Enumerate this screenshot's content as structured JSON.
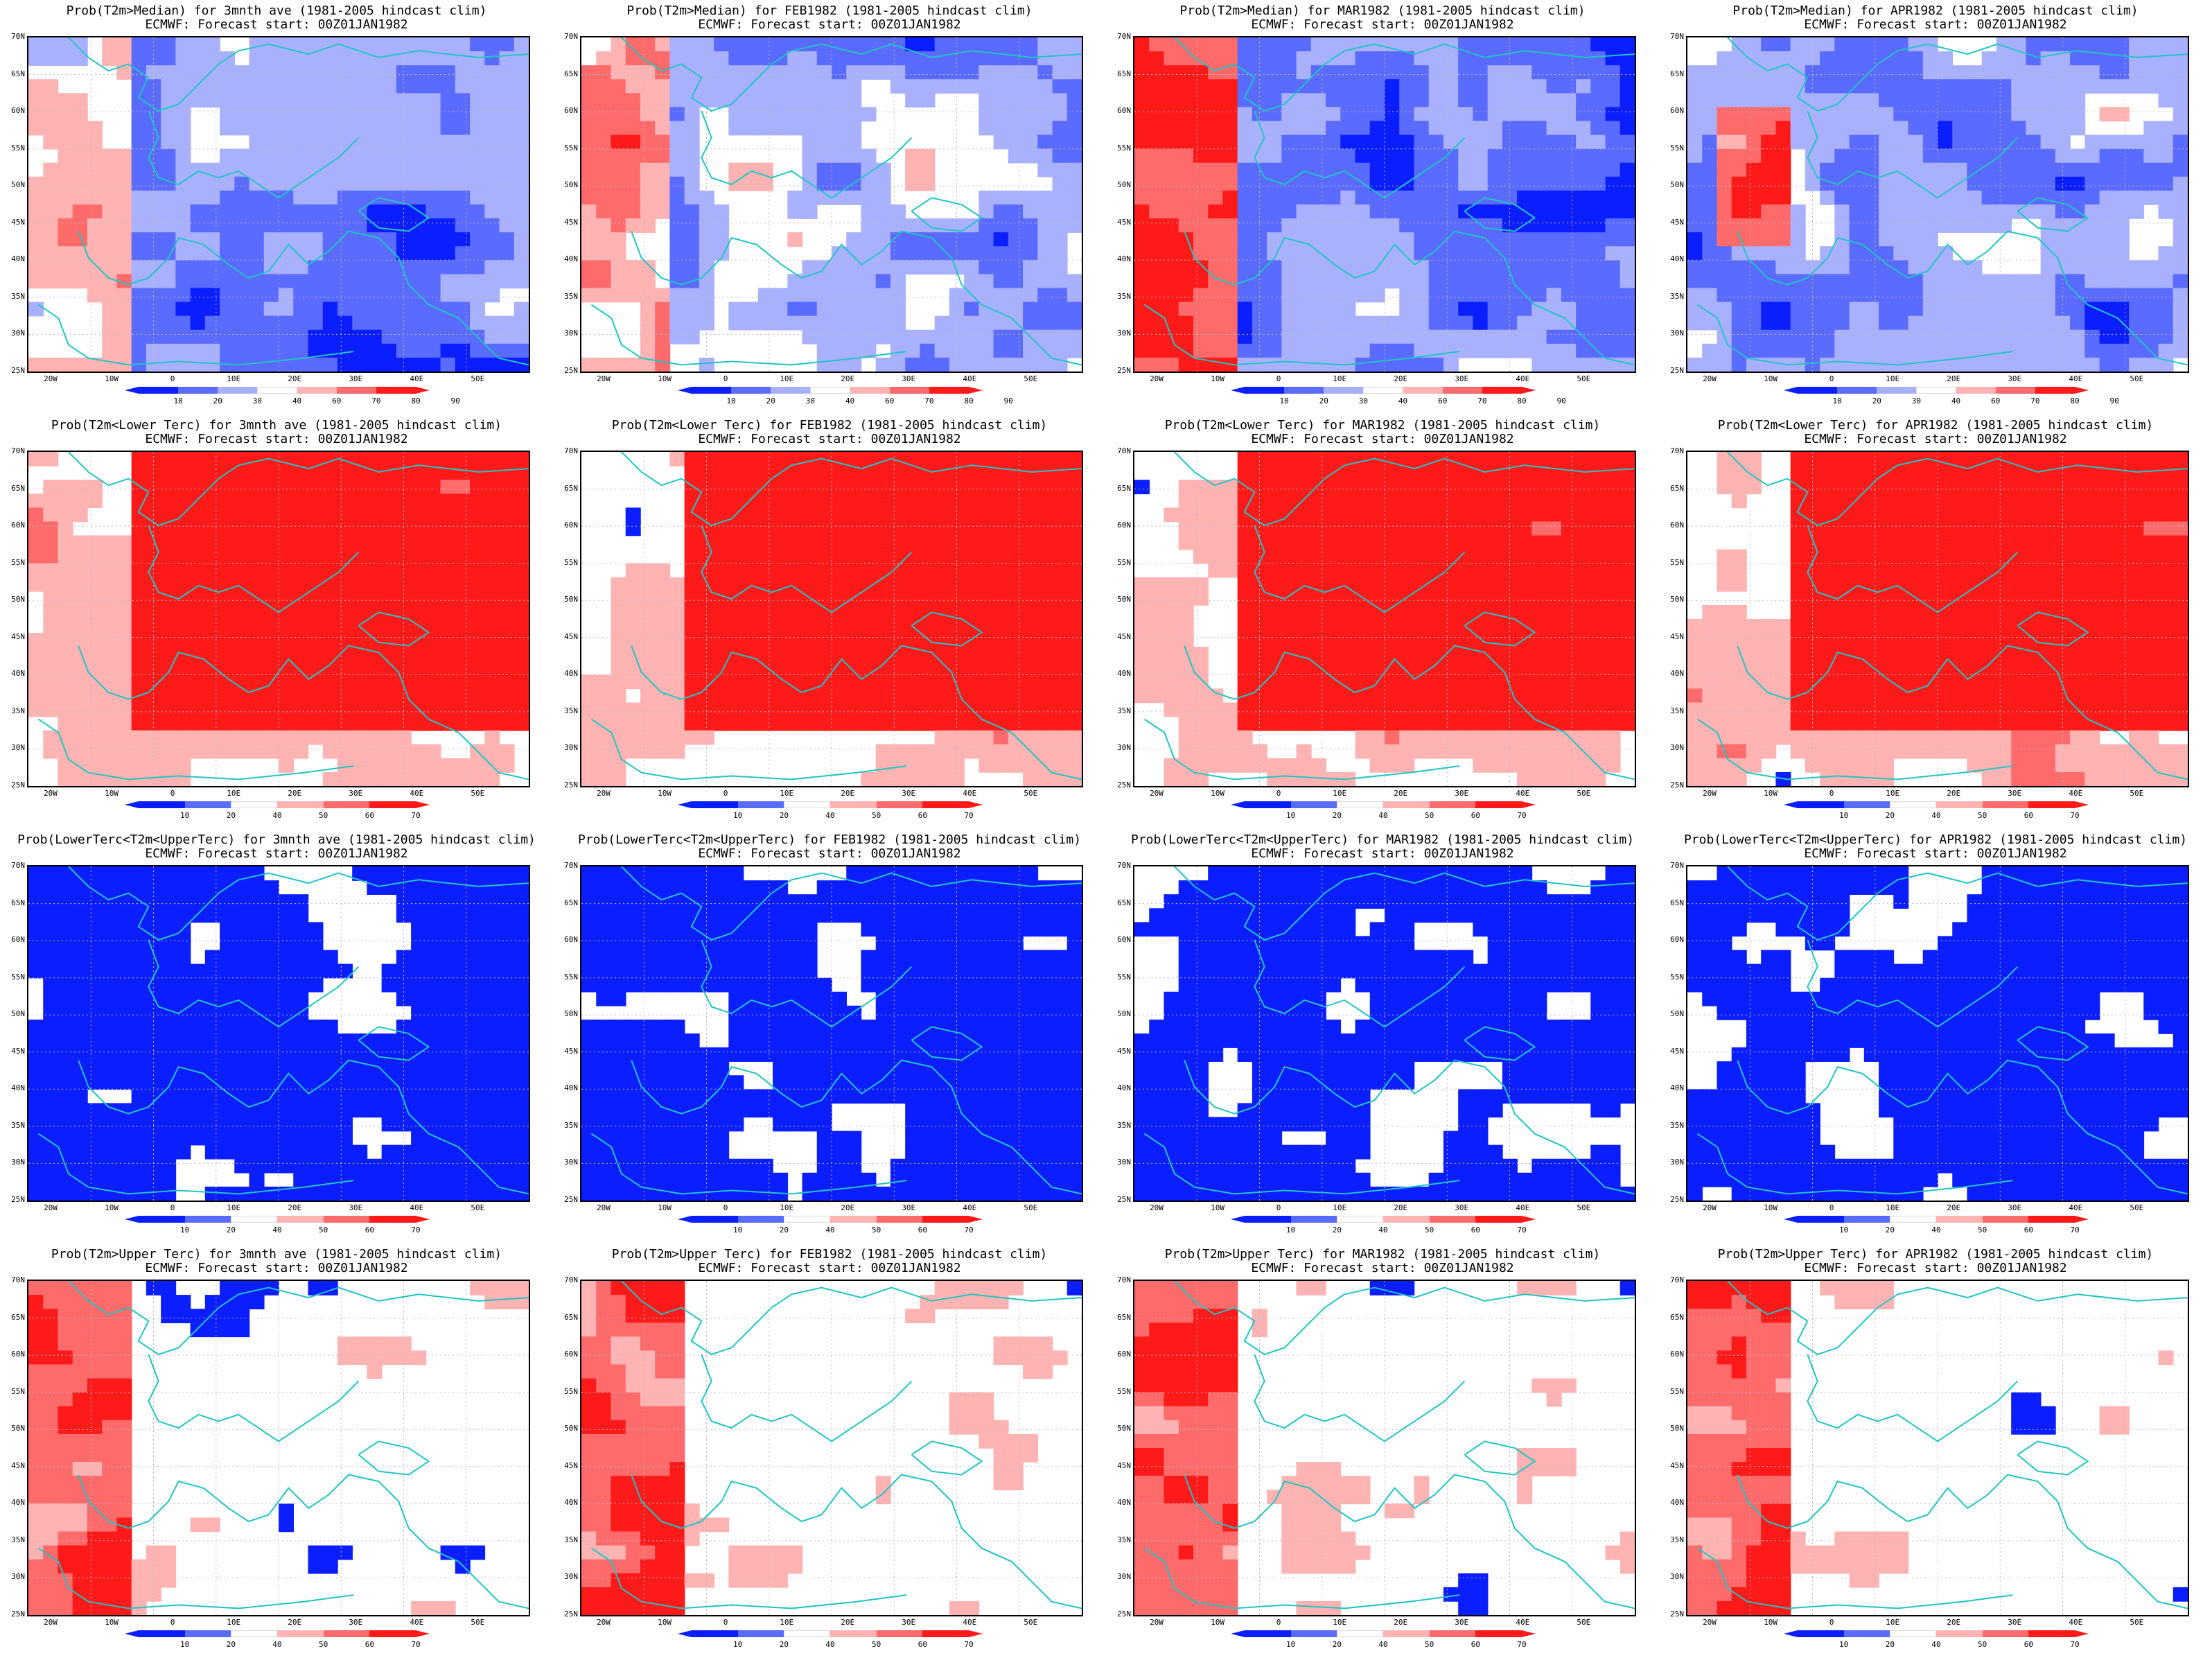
{
  "colors": {
    "blue_dark": "#0a1eff",
    "blue_mid": "#5a6bff",
    "blue_light": "#a9b1ff",
    "white": "#ffffff",
    "red_light": "#ffb3b3",
    "red_mid": "#ff6b6b",
    "red_dark": "#ff1a1a",
    "coast": "#20c4c4"
  },
  "lat_labels": [
    "70N",
    "65N",
    "60N",
    "55N",
    "50N",
    "45N",
    "40N",
    "35N",
    "30N",
    "25N"
  ],
  "lon_labels": [
    "20W",
    "10W",
    "0",
    "10E",
    "20E",
    "30E",
    "40E",
    "50E"
  ],
  "colorbars": {
    "median": [
      "10",
      "20",
      "30",
      "40",
      "60",
      "70",
      "80",
      "90"
    ],
    "tercile": [
      "10",
      "20",
      "40",
      "50",
      "60",
      "70"
    ]
  },
  "panels": [
    {
      "title1": "Prob(T2m>Median) for 3mnth ave (1981-2005 hindcast clim)",
      "title2": "ECMWF: Forecast start: 00Z01JAN1982",
      "kind": "median",
      "pattern": "median_ave"
    },
    {
      "title1": "Prob(T2m>Median) for FEB1982 (1981-2005 hindcast clim)",
      "title2": "ECMWF: Forecast start: 00Z01JAN1982",
      "kind": "median",
      "pattern": "median_feb"
    },
    {
      "title1": "Prob(T2m>Median) for MAR1982 (1981-2005 hindcast clim)",
      "title2": "ECMWF: Forecast start: 00Z01JAN1982",
      "kind": "median",
      "pattern": "median_mar"
    },
    {
      "title1": "Prob(T2m>Median) for APR1982 (1981-2005 hindcast clim)",
      "title2": "ECMWF: Forecast start: 00Z01JAN1982",
      "kind": "median",
      "pattern": "median_apr"
    },
    {
      "title1": "Prob(T2m<Lower Terc) for 3mnth ave (1981-2005 hindcast clim)",
      "title2": "ECMWF: Forecast start: 00Z01JAN1982",
      "kind": "tercile",
      "pattern": "lower"
    },
    {
      "title1": "Prob(T2m<Lower Terc) for FEB1982 (1981-2005 hindcast clim)",
      "title2": "ECMWF: Forecast start: 00Z01JAN1982",
      "kind": "tercile",
      "pattern": "lower"
    },
    {
      "title1": "Prob(T2m<Lower Terc) for MAR1982 (1981-2005 hindcast clim)",
      "title2": "ECMWF: Forecast start: 00Z01JAN1982",
      "kind": "tercile",
      "pattern": "lower"
    },
    {
      "title1": "Prob(T2m<Lower Terc) for APR1982 (1981-2005 hindcast clim)",
      "title2": "ECMWF: Forecast start: 00Z01JAN1982",
      "kind": "tercile",
      "pattern": "lower"
    },
    {
      "title1": "Prob(LowerTerc<T2m<UpperTerc) for 3mnth ave (1981-2005 hindcast clim)",
      "title2": "ECMWF: Forecast start: 00Z01JAN1982",
      "kind": "tercile",
      "pattern": "middle"
    },
    {
      "title1": "Prob(LowerTerc<T2m<UpperTerc) for FEB1982 (1981-2005 hindcast clim)",
      "title2": "ECMWF: Forecast start: 00Z01JAN1982",
      "kind": "tercile",
      "pattern": "middle"
    },
    {
      "title1": "Prob(LowerTerc<T2m<UpperTerc) for MAR1982 (1981-2005 hindcast clim)",
      "title2": "ECMWF: Forecast start: 00Z01JAN1982",
      "kind": "tercile",
      "pattern": "middle"
    },
    {
      "title1": "Prob(LowerTerc<T2m<UpperTerc) for APR1982 (1981-2005 hindcast clim)",
      "title2": "ECMWF: Forecast start: 00Z01JAN1982",
      "kind": "tercile",
      "pattern": "middle"
    },
    {
      "title1": "Prob(T2m>Upper Terc) for 3mnth ave (1981-2005 hindcast clim)",
      "title2": "ECMWF: Forecast start: 00Z01JAN1982",
      "kind": "tercile",
      "pattern": "upper"
    },
    {
      "title1": "Prob(T2m>Upper Terc) for FEB1982 (1981-2005 hindcast clim)",
      "title2": "ECMWF: Forecast start: 00Z01JAN1982",
      "kind": "tercile",
      "pattern": "upper"
    },
    {
      "title1": "Prob(T2m>Upper Terc) for MAR1982 (1981-2005 hindcast clim)",
      "title2": "ECMWF: Forecast start: 00Z01JAN1982",
      "kind": "tercile",
      "pattern": "upper"
    },
    {
      "title1": "Prob(T2m>Upper Terc) for APR1982 (1981-2005 hindcast clim)",
      "title2": "ECMWF: Forecast start: 00Z01JAN1982",
      "kind": "tercile",
      "pattern": "upper"
    }
  ]
}
